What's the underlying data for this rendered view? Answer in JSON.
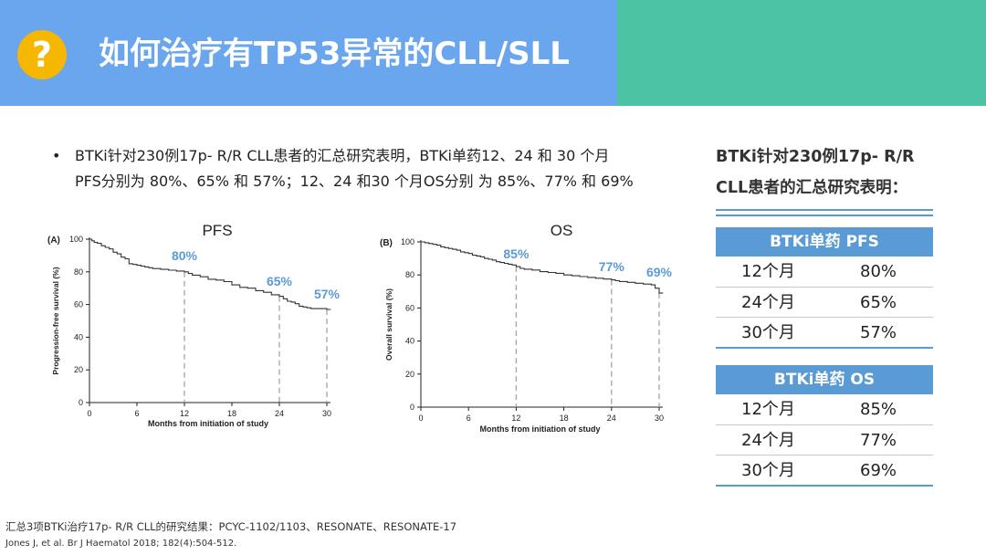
{
  "header": {
    "badge": "?",
    "title": "如何治疗有TP53异常的CLL/SLL",
    "colors": {
      "left": "#6aa6ee",
      "right": "#4cc3a3",
      "badge": "#f5b700"
    }
  },
  "bullet": {
    "marker": "•",
    "lines": [
      "BTKi针对230例17p- R/R CLL患者的汇总研究表明，BTKi单药12、24 和 30 个月",
      "PFS分别为 80%、65% 和 57%；12、24 和30 个月OS分别 为 85%、77% 和 69%"
    ]
  },
  "chart_data": [
    {
      "type": "line",
      "panel_label": "(A)",
      "title": "PFS",
      "xlabel": "Months from initiation of study",
      "ylabel": "Progression-free survival (%)",
      "xlim": [
        0,
        30
      ],
      "ylim": [
        0,
        100
      ],
      "xticks": [
        0,
        6,
        12,
        18,
        24,
        30
      ],
      "yticks": [
        0,
        20,
        40,
        60,
        80,
        100
      ],
      "grid": false,
      "line_color": "#333333",
      "marker_color": "#aaaaaa",
      "label_color": "#5b9bd5",
      "series": [
        {
          "x": [
            0,
            0.3,
            0.6,
            1,
            1.5,
            2,
            2.5,
            3,
            3.5,
            4,
            4.5,
            5,
            5.5,
            6,
            6.5,
            7,
            7.5,
            8,
            8.5,
            9,
            9.5,
            10,
            10.5,
            11,
            11.5,
            12,
            12.5,
            13,
            14,
            15,
            16,
            17,
            18,
            19,
            20,
            21,
            22,
            23,
            24,
            24.5,
            25,
            25.5,
            26,
            26.5,
            27,
            27.5,
            28,
            28.5,
            29,
            29.5,
            30,
            30.5
          ],
          "y": [
            100,
            99,
            98,
            97.5,
            96,
            95,
            94,
            92,
            91,
            89,
            88,
            85,
            84.5,
            84,
            83.5,
            83,
            82.5,
            82,
            82,
            81.5,
            81.5,
            81,
            81,
            80.5,
            80.5,
            80,
            79,
            78,
            77,
            75.5,
            75,
            74,
            72,
            70.5,
            70,
            68.5,
            67.5,
            66,
            65,
            63.5,
            62,
            61.5,
            60.5,
            59,
            58.5,
            58,
            57.5,
            57.5,
            57.5,
            57.5,
            57,
            57
          ]
        }
      ],
      "markers": [
        {
          "x": 12,
          "y": 80,
          "label": "80%"
        },
        {
          "x": 24,
          "y": 65,
          "label": "65%"
        },
        {
          "x": 30,
          "y": 57,
          "label": "57%"
        }
      ]
    },
    {
      "type": "line",
      "panel_label": "(B)",
      "title": "OS",
      "xlabel": "Months from initiation of study",
      "ylabel": "Overall survival (%)",
      "xlim": [
        0,
        30
      ],
      "ylim": [
        0,
        100
      ],
      "xticks": [
        0,
        6,
        12,
        18,
        24,
        30
      ],
      "yticks": [
        0,
        20,
        40,
        60,
        80,
        100
      ],
      "grid": false,
      "line_color": "#333333",
      "marker_color": "#aaaaaa",
      "label_color": "#5b9bd5",
      "series": [
        {
          "x": [
            0,
            0.5,
            1,
            1.5,
            2,
            2.5,
            3,
            3.5,
            4,
            4.5,
            5,
            5.5,
            6,
            6.5,
            7,
            7.5,
            8,
            8.5,
            9,
            9.5,
            10,
            10.5,
            11,
            11.5,
            12,
            12.5,
            13,
            14,
            15,
            16,
            17,
            18,
            19,
            20,
            21,
            22,
            23,
            24,
            24.5,
            25,
            26,
            27,
            28,
            28.5,
            29,
            29.5,
            30,
            30.5
          ],
          "y": [
            100,
            99.5,
            99,
            98.5,
            98,
            97,
            96.5,
            96,
            95.5,
            95,
            94,
            93.5,
            93,
            92,
            91.5,
            91,
            90,
            89.5,
            89,
            88,
            87.5,
            87,
            86.5,
            86,
            85,
            84,
            83.5,
            83,
            82,
            81.5,
            81,
            80,
            79.5,
            79,
            78.5,
            78,
            77.5,
            77,
            76.5,
            76,
            75.5,
            75,
            74.5,
            74.5,
            74,
            72,
            69,
            69
          ]
        }
      ],
      "markers": [
        {
          "x": 12,
          "y": 85,
          "label": "85%"
        },
        {
          "x": 24,
          "y": 77,
          "label": "77%"
        },
        {
          "x": 30,
          "y": 69,
          "label": "69%"
        }
      ]
    }
  ],
  "side": {
    "heading_lines": [
      "BTKi针对230例17p- R/R",
      "CLL患者的汇总研究表明："
    ],
    "accent": "#5b9bd5",
    "tables": [
      {
        "header": "BTKi单药 PFS",
        "rows": [
          {
            "period": "12个月",
            "value": "80%"
          },
          {
            "period": "24个月",
            "value": "65%"
          },
          {
            "period": "30个月",
            "value": "57%"
          }
        ]
      },
      {
        "header": "BTKi单药 OS",
        "rows": [
          {
            "period": "12个月",
            "value": "85%"
          },
          {
            "period": "24个月",
            "value": "77%"
          },
          {
            "period": "30个月",
            "value": "69%"
          }
        ]
      }
    ]
  },
  "footnotes": [
    "汇总3项BTKi治疗17p- R/R CLL的研究结果：PCYC-1102/1103、RESONATE、RESONATE-17",
    "Jones J, et al. Br J Haematol 2018; 182(4):504-512."
  ]
}
